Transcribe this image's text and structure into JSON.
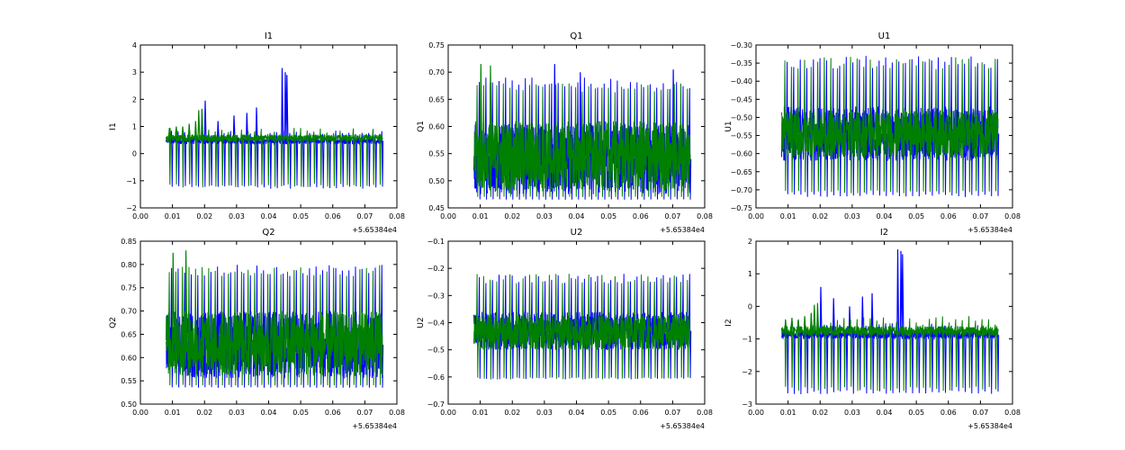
{
  "chart_data": [
    {
      "id": "I1",
      "type": "line",
      "title": "I1",
      "ylabel": "I1",
      "xlabel": "",
      "offset_label": "+5.65384e4",
      "xlim": [
        0,
        0.08
      ],
      "ylim": [
        -2,
        4
      ],
      "xticks": [
        0,
        0.01,
        0.02,
        0.03,
        0.04,
        0.05,
        0.06,
        0.07,
        0.08
      ],
      "xtick_labels": [
        "0.00",
        "0.01",
        "0.02",
        "0.03",
        "0.04",
        "0.05",
        "0.06",
        "0.07",
        "0.08"
      ],
      "yticks": [
        -2,
        -1,
        0,
        1,
        2,
        3,
        4
      ],
      "ytick_labels": [
        "−2",
        "−1",
        "0",
        "1",
        "2",
        "3",
        "4"
      ],
      "series": [
        {
          "name": "blue",
          "color": "#0000ff",
          "x_range": [
            0.008,
            0.0755
          ],
          "band": [
            0.35,
            0.6
          ],
          "dip": -1.3,
          "spikes": [
            [
              0.02,
              1.95
            ],
            [
              0.024,
              1.2
            ],
            [
              0.029,
              1.4
            ],
            [
              0.033,
              1.5
            ],
            [
              0.036,
              1.7
            ],
            [
              0.044,
              3.15
            ],
            [
              0.045,
              3.0
            ],
            [
              0.0455,
              2.9
            ]
          ]
        },
        {
          "name": "green",
          "color": "#008000",
          "x_range": [
            0.008,
            0.0755
          ],
          "band": [
            0.45,
            0.7
          ],
          "dip": -1.25,
          "spikes": [
            [
              0.009,
              0.95
            ],
            [
              0.011,
              1.0
            ],
            [
              0.013,
              1.0
            ],
            [
              0.015,
              1.1
            ],
            [
              0.017,
              1.2
            ],
            [
              0.018,
              1.6
            ],
            [
              0.019,
              1.65
            ]
          ]
        }
      ]
    },
    {
      "id": "Q1",
      "type": "line",
      "title": "Q1",
      "ylabel": "Q1",
      "xlabel": "",
      "offset_label": "+5.65384e4",
      "xlim": [
        0,
        0.08
      ],
      "ylim": [
        0.45,
        0.75
      ],
      "xticks": [
        0,
        0.01,
        0.02,
        0.03,
        0.04,
        0.05,
        0.06,
        0.07,
        0.08
      ],
      "xtick_labels": [
        "0.00",
        "0.01",
        "0.02",
        "0.03",
        "0.04",
        "0.05",
        "0.06",
        "0.07",
        "0.08"
      ],
      "yticks": [
        0.45,
        0.5,
        0.55,
        0.6,
        0.65,
        0.7,
        0.75
      ],
      "ytick_labels": [
        "0.45",
        "0.50",
        "0.55",
        "0.60",
        "0.65",
        "0.70",
        "0.75"
      ],
      "series": [
        {
          "name": "blue",
          "color": "#0000ff",
          "x_range": [
            0.008,
            0.0755
          ],
          "band": [
            0.475,
            0.605
          ],
          "peak": 0.69,
          "dip": 0.465,
          "spikes": [
            [
              0.033,
              0.715
            ],
            [
              0.041,
              0.7
            ],
            [
              0.07,
              0.705
            ]
          ]
        },
        {
          "name": "green",
          "color": "#008000",
          "x_range": [
            0.008,
            0.0755
          ],
          "band": [
            0.48,
            0.61
          ],
          "peak": 0.68,
          "dip": 0.47,
          "spikes": [
            [
              0.01,
              0.715
            ],
            [
              0.013,
              0.712
            ]
          ]
        }
      ]
    },
    {
      "id": "U1",
      "type": "line",
      "title": "U1",
      "ylabel": "U1",
      "xlabel": "",
      "offset_label": "+5.65384e4",
      "xlim": [
        0,
        0.08
      ],
      "ylim": [
        -0.75,
        -0.3
      ],
      "xticks": [
        0,
        0.01,
        0.02,
        0.03,
        0.04,
        0.05,
        0.06,
        0.07,
        0.08
      ],
      "xtick_labels": [
        "0.00",
        "0.01",
        "0.02",
        "0.03",
        "0.04",
        "0.05",
        "0.06",
        "0.07",
        "0.08"
      ],
      "yticks": [
        -0.75,
        -0.7,
        -0.65,
        -0.6,
        -0.55,
        -0.5,
        -0.45,
        -0.4,
        -0.35,
        -0.3
      ],
      "ytick_labels": [
        "−0.75",
        "−0.70",
        "−0.65",
        "−0.60",
        "−0.55",
        "−0.50",
        "−0.45",
        "−0.40",
        "−0.35",
        "−0.30"
      ],
      "series": [
        {
          "name": "blue",
          "color": "#0000ff",
          "x_range": [
            0.008,
            0.0755
          ],
          "band": [
            -0.62,
            -0.47
          ],
          "peak": -0.33,
          "dip": -0.72,
          "spikes": []
        },
        {
          "name": "green",
          "color": "#008000",
          "x_range": [
            0.008,
            0.0755
          ],
          "band": [
            -0.61,
            -0.48
          ],
          "peak": -0.33,
          "dip": -0.71,
          "spikes": []
        }
      ]
    },
    {
      "id": "Q2",
      "type": "line",
      "title": "Q2",
      "ylabel": "Q2",
      "xlabel": "",
      "offset_label": "+5.65384e4",
      "xlim": [
        0,
        0.08
      ],
      "ylim": [
        0.5,
        0.85
      ],
      "xticks": [
        0,
        0.01,
        0.02,
        0.03,
        0.04,
        0.05,
        0.06,
        0.07,
        0.08
      ],
      "xtick_labels": [
        "0.00",
        "0.01",
        "0.02",
        "0.03",
        "0.04",
        "0.05",
        "0.06",
        "0.07",
        "0.08"
      ],
      "yticks": [
        0.5,
        0.55,
        0.6,
        0.65,
        0.7,
        0.75,
        0.8,
        0.85
      ],
      "ytick_labels": [
        "0.50",
        "0.55",
        "0.60",
        "0.65",
        "0.70",
        "0.75",
        "0.80",
        "0.85"
      ],
      "series": [
        {
          "name": "blue",
          "color": "#0000ff",
          "x_range": [
            0.008,
            0.0755
          ],
          "band": [
            0.555,
            0.7
          ],
          "peak": 0.8,
          "dip": 0.535,
          "spikes": []
        },
        {
          "name": "green",
          "color": "#008000",
          "x_range": [
            0.008,
            0.0755
          ],
          "band": [
            0.56,
            0.7
          ],
          "peak": 0.8,
          "dip": 0.54,
          "spikes": [
            [
              0.01,
              0.825
            ],
            [
              0.014,
              0.83
            ]
          ]
        }
      ]
    },
    {
      "id": "U2",
      "type": "line",
      "title": "U2",
      "ylabel": "U2",
      "xlabel": "",
      "offset_label": "+5.65384e4",
      "xlim": [
        0,
        0.08
      ],
      "ylim": [
        -0.7,
        -0.1
      ],
      "xticks": [
        0,
        0.01,
        0.02,
        0.03,
        0.04,
        0.05,
        0.06,
        0.07,
        0.08
      ],
      "xtick_labels": [
        "0.00",
        "0.01",
        "0.02",
        "0.03",
        "0.04",
        "0.05",
        "0.06",
        "0.07",
        "0.08"
      ],
      "yticks": [
        -0.7,
        -0.6,
        -0.5,
        -0.4,
        -0.3,
        -0.2,
        -0.1
      ],
      "ytick_labels": [
        "−0.7",
        "−0.6",
        "−0.5",
        "−0.4",
        "−0.3",
        "−0.2",
        "−0.1"
      ],
      "series": [
        {
          "name": "blue",
          "color": "#0000ff",
          "x_range": [
            0.008,
            0.0755
          ],
          "band": [
            -0.5,
            -0.36
          ],
          "peak": -0.22,
          "dip": -0.61,
          "spikes": []
        },
        {
          "name": "green",
          "color": "#008000",
          "x_range": [
            0.008,
            0.0755
          ],
          "band": [
            -0.5,
            -0.37
          ],
          "peak": -0.22,
          "dip": -0.61,
          "spikes": []
        }
      ]
    },
    {
      "id": "I2",
      "type": "line",
      "title": "I2",
      "ylabel": "I2",
      "xlabel": "",
      "offset_label": "+5.65384e4",
      "xlim": [
        0,
        0.08
      ],
      "ylim": [
        -3,
        2
      ],
      "xticks": [
        0,
        0.01,
        0.02,
        0.03,
        0.04,
        0.05,
        0.06,
        0.07,
        0.08
      ],
      "xtick_labels": [
        "0.00",
        "0.01",
        "0.02",
        "0.03",
        "0.04",
        "0.05",
        "0.06",
        "0.07",
        "0.08"
      ],
      "yticks": [
        -3,
        -2,
        -1,
        0,
        1,
        2
      ],
      "ytick_labels": [
        "−3",
        "−2",
        "−1",
        "0",
        "1",
        "2"
      ],
      "series": [
        {
          "name": "blue",
          "color": "#0000ff",
          "x_range": [
            0.008,
            0.0755
          ],
          "band": [
            -1.0,
            -0.75
          ],
          "dip": -2.7,
          "spikes": [
            [
              0.02,
              0.6
            ],
            [
              0.024,
              0.25
            ],
            [
              0.029,
              0.0
            ],
            [
              0.033,
              0.3
            ],
            [
              0.036,
              0.4
            ],
            [
              0.044,
              1.75
            ],
            [
              0.045,
              1.7
            ],
            [
              0.0455,
              1.6
            ]
          ]
        },
        {
          "name": "green",
          "color": "#008000",
          "x_range": [
            0.008,
            0.0755
          ],
          "band": [
            -0.9,
            -0.6
          ],
          "dip": -2.6,
          "spikes": [
            [
              0.009,
              -0.4
            ],
            [
              0.011,
              -0.35
            ],
            [
              0.013,
              -0.4
            ],
            [
              0.015,
              -0.3
            ],
            [
              0.017,
              -0.2
            ],
            [
              0.018,
              0.05
            ],
            [
              0.019,
              0.1
            ]
          ]
        }
      ]
    }
  ]
}
